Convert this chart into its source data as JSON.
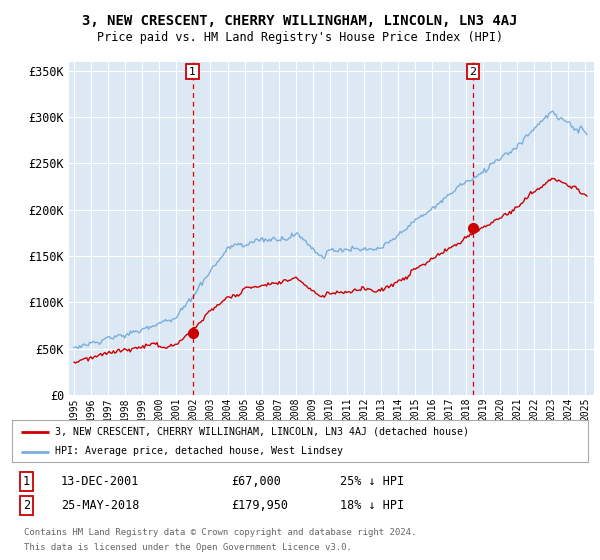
{
  "title": "3, NEW CRESCENT, CHERRY WILLINGHAM, LINCOLN, LN3 4AJ",
  "subtitle": "Price paid vs. HM Land Registry's House Price Index (HPI)",
  "background_color": "#ffffff",
  "plot_bg_color": "#dce9f5",
  "ylim": [
    0,
    360000
  ],
  "yticks": [
    0,
    50000,
    100000,
    150000,
    200000,
    250000,
    300000,
    350000
  ],
  "ytick_labels": [
    "£0",
    "£50K",
    "£100K",
    "£150K",
    "£200K",
    "£250K",
    "£300K",
    "£350K"
  ],
  "xlim_start": 1994.7,
  "xlim_end": 2025.5,
  "xticks": [
    1995,
    1996,
    1997,
    1998,
    1999,
    2000,
    2001,
    2002,
    2003,
    2004,
    2005,
    2006,
    2007,
    2008,
    2009,
    2010,
    2011,
    2012,
    2013,
    2014,
    2015,
    2016,
    2017,
    2018,
    2019,
    2020,
    2021,
    2022,
    2023,
    2024,
    2025
  ],
  "hpi_color": "#7aaddb",
  "price_color": "#cc0000",
  "vline_color": "#dd0000",
  "marker1_x": 2001.96,
  "marker1_y": 67000,
  "marker2_x": 2018.4,
  "marker2_y": 179950,
  "legend_label1": "3, NEW CRESCENT, CHERRY WILLINGHAM, LINCOLN, LN3 4AJ (detached house)",
  "legend_label2": "HPI: Average price, detached house, West Lindsey",
  "annotation1_label": "1",
  "annotation2_label": "2",
  "footer1": "Contains HM Land Registry data © Crown copyright and database right 2024.",
  "footer2": "This data is licensed under the Open Government Licence v3.0.",
  "table_row1": [
    "1",
    "13-DEC-2001",
    "£67,000",
    "25% ↓ HPI"
  ],
  "table_row2": [
    "2",
    "25-MAY-2018",
    "£179,950",
    "18% ↓ HPI"
  ]
}
